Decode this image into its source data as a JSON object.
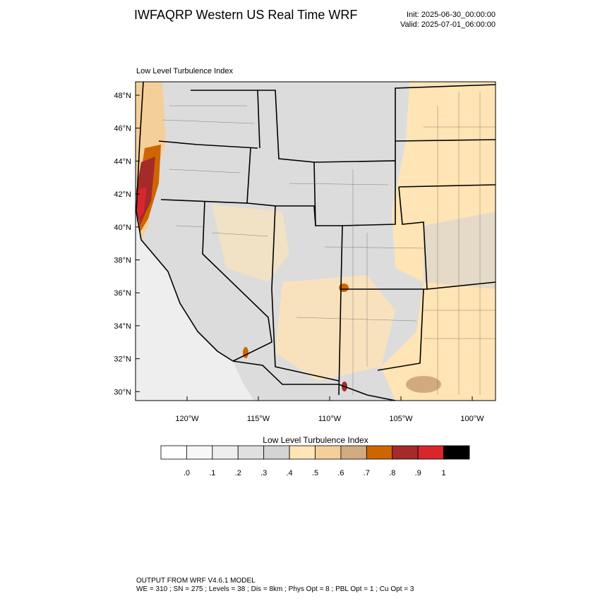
{
  "header": {
    "title": "IWFAQRP Western US Real Time WRF",
    "init": "Init: 2025-06-30_00:00:00",
    "valid": "Valid: 2025-07-01_06:00:00"
  },
  "map": {
    "label": "Low Level Turbulence Index",
    "lat_ticks": [
      "48°N",
      "46°N",
      "44°N",
      "42°N",
      "40°N",
      "38°N",
      "36°N",
      "34°N",
      "32°N",
      "30°N"
    ],
    "lon_ticks": [
      "120°W",
      "115°W",
      "110°W",
      "105°W",
      "100°W"
    ]
  },
  "colorbar": {
    "title": "Low Level Turbulence Index",
    "colors": [
      "#ffffff",
      "#f7f7f7",
      "#eeeeee",
      "#e0e0e0",
      "#d4d4d4",
      "#ffe4b5",
      "#f5cf9a",
      "#d2aa80",
      "#cd6600",
      "#a52a2a",
      "#d7262c",
      "#000000"
    ],
    "labels": [
      ".0",
      ".1",
      ".2",
      ".3",
      ".4",
      ".5",
      ".6",
      ".7",
      ".8",
      ".9",
      "1"
    ]
  },
  "footer": {
    "line1": "OUTPUT FROM WRF V4.6.1 MODEL",
    "line2": "WE = 310 ; SN = 275 ; Levels = 38 ; Dis = 8km ; Phys Opt = 8 ; PBL Opt = 1 ; Cu Opt = 3"
  }
}
